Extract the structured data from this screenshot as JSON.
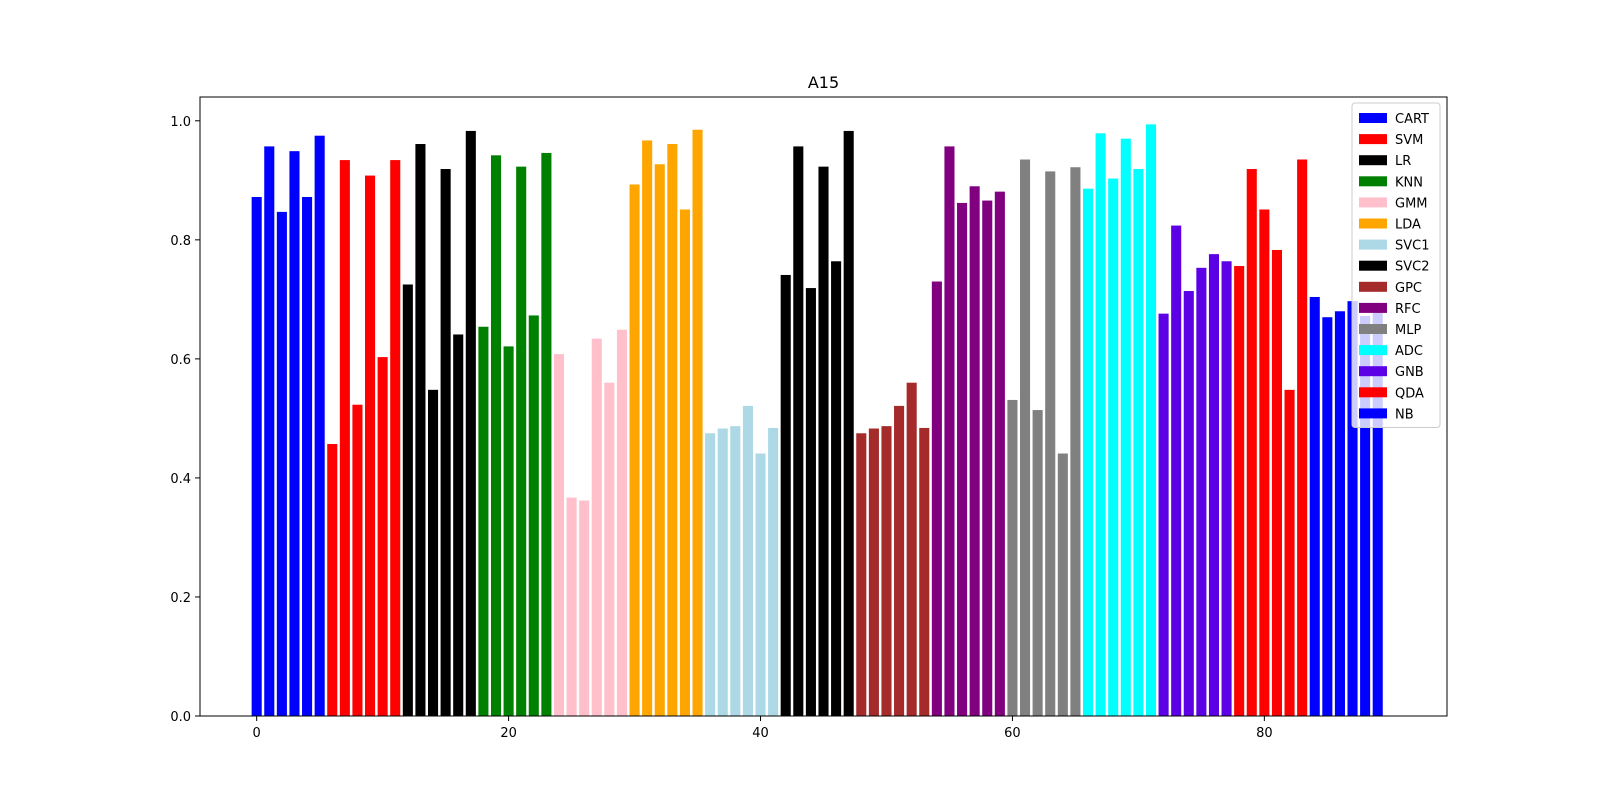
{
  "chart_data": {
    "type": "bar",
    "title": "A15",
    "xlabel": "",
    "ylabel": "",
    "xlim": [
      -4.5,
      94.5
    ],
    "ylim": [
      0.0,
      1.04
    ],
    "xticks": [
      "0",
      "20",
      "40",
      "60",
      "80"
    ],
    "xtick_values": [
      0,
      20,
      40,
      60,
      80
    ],
    "yticks": [
      "0.0",
      "0.2",
      "0.4",
      "0.6",
      "0.8",
      "1.0"
    ],
    "ytick_values": [
      0.0,
      0.2,
      0.4,
      0.6,
      0.8,
      1.0
    ],
    "grid": false,
    "legend_position": "top-right",
    "series": [
      {
        "name": "CART",
        "color": "#0000ff",
        "x": [
          0,
          1,
          2,
          3,
          4,
          5
        ],
        "values": [
          0.872,
          0.957,
          0.847,
          0.949,
          0.872,
          0.975
        ]
      },
      {
        "name": "SVM",
        "color": "#ff0000",
        "x": [
          6,
          7,
          8,
          9,
          10,
          11
        ],
        "values": [
          0.457,
          0.934,
          0.523,
          0.908,
          0.603,
          0.934
        ]
      },
      {
        "name": "LR",
        "color": "#000000",
        "x": [
          12,
          13,
          14,
          15,
          16,
          17
        ],
        "values": [
          0.725,
          0.961,
          0.548,
          0.919,
          0.641,
          0.983
        ]
      },
      {
        "name": "KNN",
        "color": "#008000",
        "x": [
          18,
          19,
          20,
          21,
          22,
          23
        ],
        "values": [
          0.654,
          0.942,
          0.621,
          0.923,
          0.673,
          0.946
        ]
      },
      {
        "name": "GMM",
        "color": "#ffc0cb",
        "x": [
          24,
          25,
          26,
          27,
          28,
          29
        ],
        "values": [
          0.608,
          0.367,
          0.362,
          0.634,
          0.56,
          0.649
        ]
      },
      {
        "name": "LDA",
        "color": "#ffa500",
        "x": [
          30,
          31,
          32,
          33,
          34,
          35
        ],
        "values": [
          0.893,
          0.967,
          0.927,
          0.961,
          0.851,
          0.985
        ]
      },
      {
        "name": "SVC1",
        "color": "#add8e6",
        "x": [
          36,
          37,
          38,
          39,
          40,
          41
        ],
        "values": [
          0.475,
          0.483,
          0.487,
          0.521,
          0.441,
          0.484
        ]
      },
      {
        "name": "SVC2",
        "color": "#000000",
        "x": [
          42,
          43,
          44,
          45,
          46,
          47
        ],
        "values": [
          0.741,
          0.957,
          0.719,
          0.923,
          0.764,
          0.983
        ]
      },
      {
        "name": "GPC",
        "color": "#a52a2a",
        "x": [
          48,
          49,
          50,
          51,
          52,
          53
        ],
        "values": [
          0.475,
          0.483,
          0.487,
          0.521,
          0.56,
          0.484
        ]
      },
      {
        "name": "RFC",
        "color": "#800080",
        "x": [
          54,
          55,
          56,
          57,
          58,
          59
        ],
        "values": [
          0.73,
          0.957,
          0.862,
          0.89,
          0.866,
          0.881
        ]
      },
      {
        "name": "MLP",
        "color": "#808080",
        "x": [
          60,
          61,
          62,
          63,
          64,
          65
        ],
        "values": [
          0.531,
          0.935,
          0.514,
          0.915,
          0.441,
          0.922
        ]
      },
      {
        "name": "ADC",
        "color": "#00ffff",
        "x": [
          66,
          67,
          68,
          69,
          70,
          71
        ],
        "values": [
          0.886,
          0.979,
          0.903,
          0.97,
          0.919,
          0.994
        ]
      },
      {
        "name": "GNB",
        "color": "#5c00e6",
        "x": [
          72,
          73,
          74,
          75,
          76,
          77
        ],
        "values": [
          0.676,
          0.824,
          0.714,
          0.753,
          0.776,
          0.764
        ]
      },
      {
        "name": "QDA",
        "color": "#ff0000",
        "x": [
          78,
          79,
          80,
          81,
          82,
          83
        ],
        "values": [
          0.756,
          0.919,
          0.851,
          0.783,
          0.548,
          0.935
        ]
      },
      {
        "name": "NB",
        "color": "#0000ff",
        "x": [
          84,
          85,
          86,
          87,
          88,
          89
        ],
        "values": [
          0.704,
          0.67,
          0.68,
          0.697,
          0.672,
          0.69
        ]
      }
    ]
  }
}
